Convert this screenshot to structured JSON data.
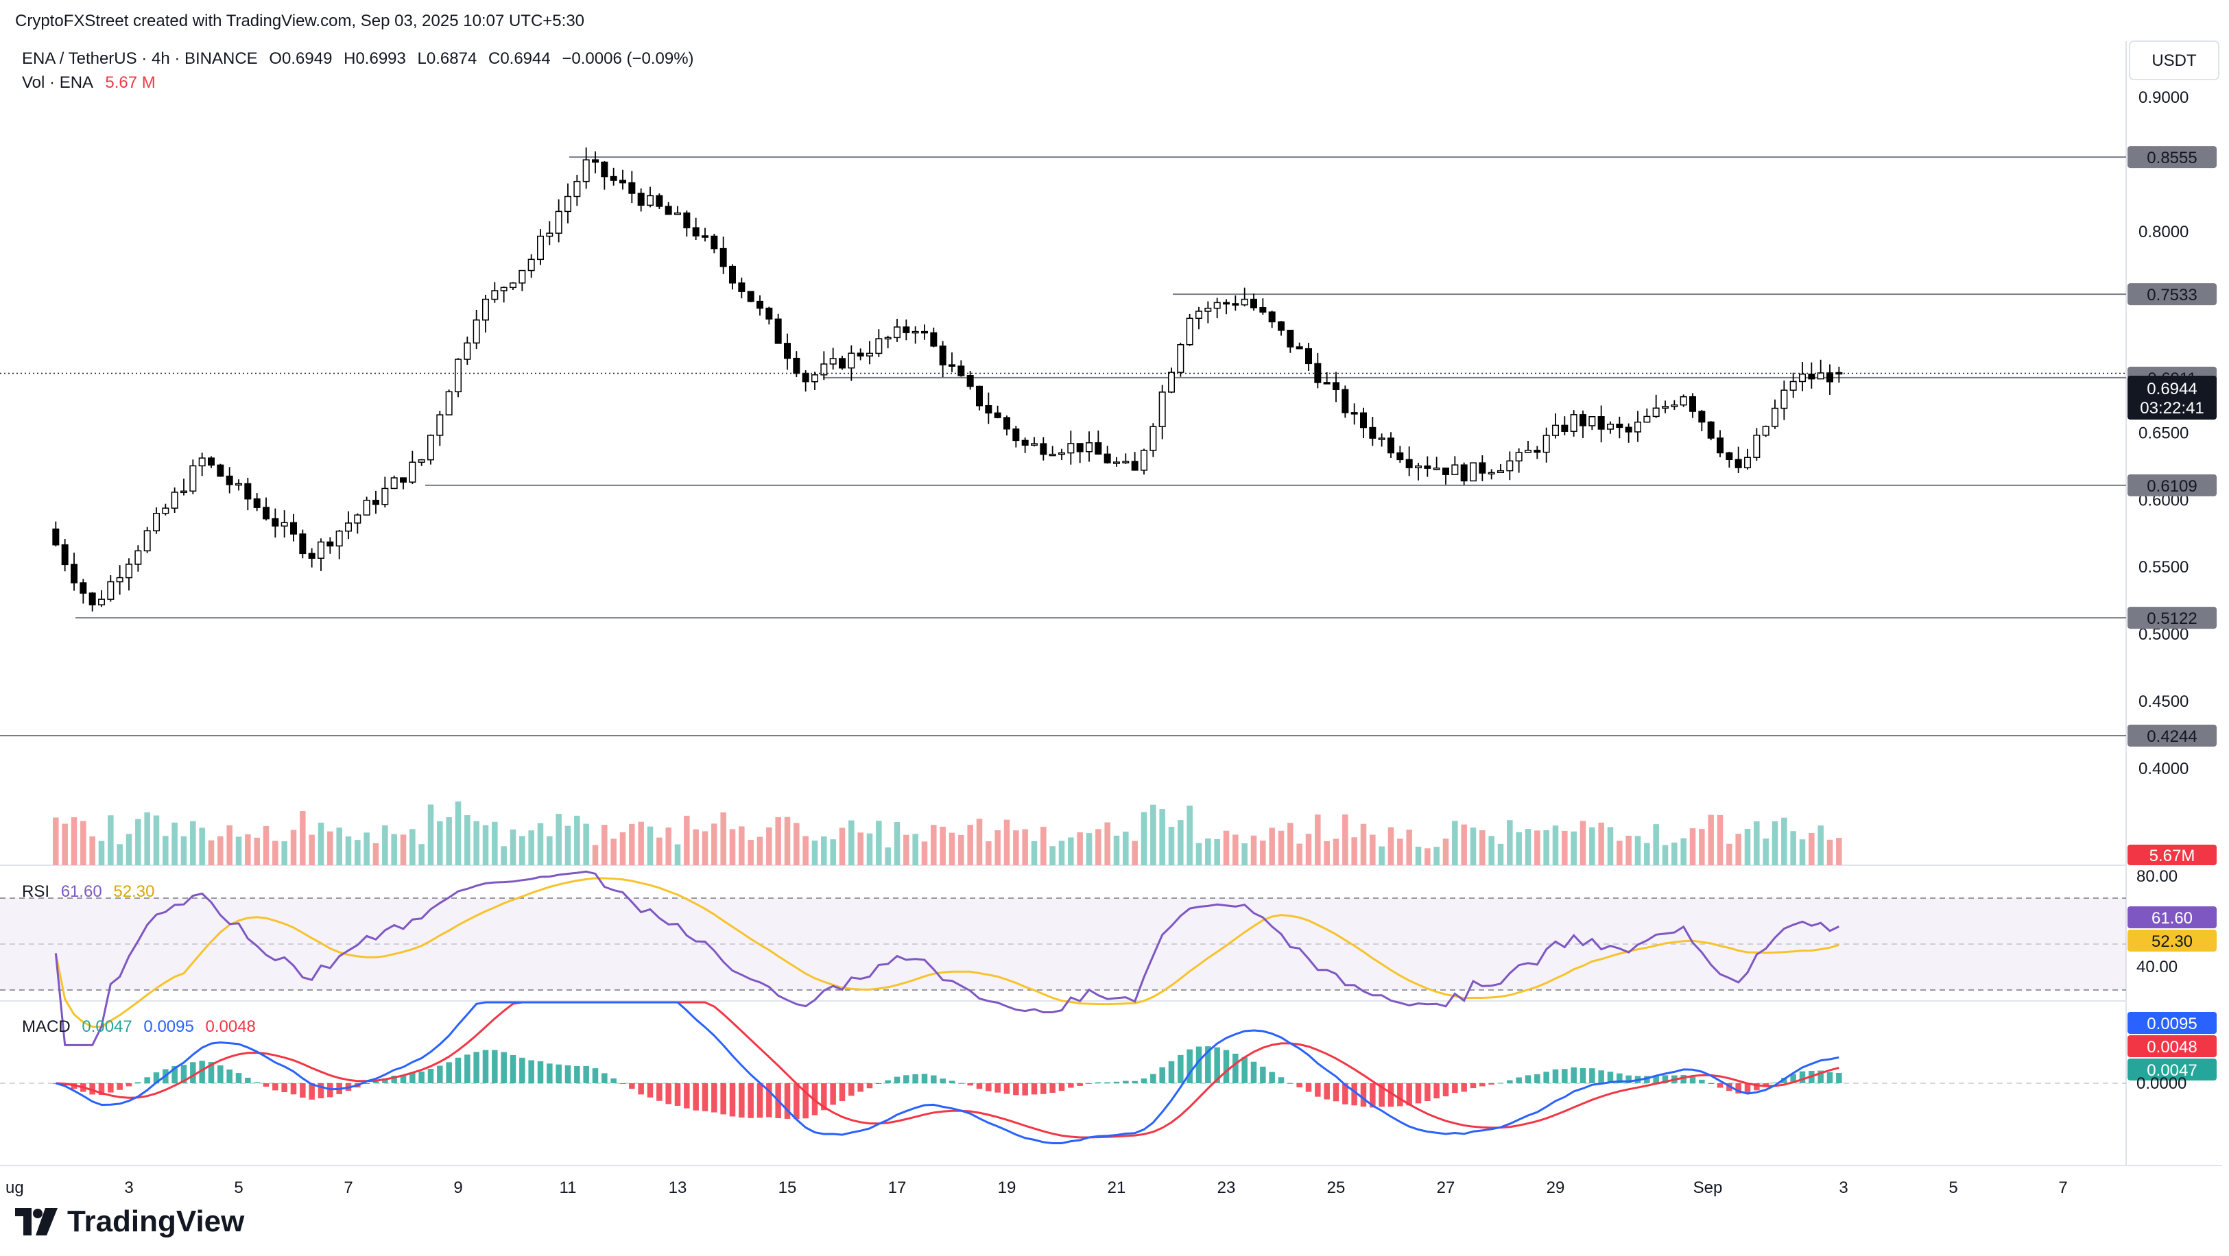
{
  "header": {
    "attribution": "CryptoFXStreet created with TradingView.com, Sep 03, 2025 10:07 UTC+5:30",
    "symbol_line_prefix": "ENA / TetherUS · 4h · BINANCE",
    "o_label": "O",
    "o_value": "0.6949",
    "h_label": "H",
    "h_value": "0.6993",
    "l_label": "L",
    "l_value": "0.6874",
    "c_label": "C",
    "c_value": "0.6944",
    "change": "−0.0006 (−0.09%)",
    "vol_label": "Vol · ENA",
    "vol_value": "5.67 M",
    "currency": "USDT"
  },
  "price_axis": {
    "ticks": [
      "0.9000",
      "0.8000",
      "0.6500",
      "0.6000",
      "0.5500",
      "0.5000",
      "0.4500",
      "0.4000"
    ],
    "tick_values": [
      0.9,
      0.8,
      0.65,
      0.6,
      0.55,
      0.5,
      0.45,
      0.4
    ],
    "current_price": "0.6944",
    "countdown": "03:22:41",
    "volume_badge": "5.67M"
  },
  "levels": [
    {
      "value": 0.8555,
      "label": "0.8555"
    },
    {
      "value": 0.7533,
      "label": "0.7533"
    },
    {
      "value": 0.6911,
      "label": "0.6911"
    },
    {
      "value": 0.6109,
      "label": "0.6109"
    },
    {
      "value": 0.5122,
      "label": "0.5122"
    },
    {
      "value": 0.4244,
      "label": "0.4244"
    }
  ],
  "rsi": {
    "label": "RSI",
    "value": "61.60",
    "ma_value": "52.30",
    "ticks": [
      "80.00",
      "40.00"
    ],
    "line_color": "#7e57c2",
    "ma_color": "#f7c32b"
  },
  "macd": {
    "label": "MACD",
    "hist": "0.0047",
    "macd": "0.0095",
    "signal": "0.0048",
    "zero_label": "0.0000",
    "macd_color": "#2962ff",
    "signal_color": "#f23645",
    "hist_color": "#26a69a"
  },
  "time_axis": {
    "labels": [
      "ug",
      "3",
      "5",
      "7",
      "9",
      "11",
      "13",
      "15",
      "17",
      "19",
      "21",
      "23",
      "25",
      "27",
      "29",
      "Sep",
      "3",
      "5",
      "7"
    ]
  },
  "brand": {
    "name": "TradingView"
  },
  "colors": {
    "up": "#ffffff",
    "down": "#000000",
    "vol_up": "#8dd1c8",
    "vol_down": "#f4a3a3",
    "line": "#787b86"
  },
  "chart_data": {
    "type": "candlestick",
    "timeframe": "4h",
    "x_start": "2025-08-01T16:00",
    "x_end": "2025-09-03T04:00",
    "ylim": [
      0.5,
      0.9
    ],
    "key_points": [
      {
        "date": "2025-08-01",
        "price": 0.59
      },
      {
        "date": "2025-08-02",
        "price": 0.52
      },
      {
        "date": "2025-08-04",
        "price": 0.63
      },
      {
        "date": "2025-08-06",
        "price": 0.56
      },
      {
        "date": "2025-08-08",
        "price": 0.63
      },
      {
        "date": "2025-08-09",
        "price": 0.74
      },
      {
        "date": "2025-08-10",
        "price": 0.78
      },
      {
        "date": "2025-08-11",
        "price": 0.85
      },
      {
        "date": "2025-08-13",
        "price": 0.8
      },
      {
        "date": "2025-08-14",
        "price": 0.75
      },
      {
        "date": "2025-08-15",
        "price": 0.69
      },
      {
        "date": "2025-08-16",
        "price": 0.71
      },
      {
        "date": "2025-08-17",
        "price": 0.73
      },
      {
        "date": "2025-08-18",
        "price": 0.68
      },
      {
        "date": "2025-08-19",
        "price": 0.64
      },
      {
        "date": "2025-08-20",
        "price": 0.64
      },
      {
        "date": "2025-08-21",
        "price": 0.62
      },
      {
        "date": "2025-08-22",
        "price": 0.74
      },
      {
        "date": "2025-08-23",
        "price": 0.75
      },
      {
        "date": "2025-08-24",
        "price": 0.71
      },
      {
        "date": "2025-08-25",
        "price": 0.66
      },
      {
        "date": "2025-08-26",
        "price": 0.63
      },
      {
        "date": "2025-08-27",
        "price": 0.62
      },
      {
        "date": "2025-08-28",
        "price": 0.63
      },
      {
        "date": "2025-08-29",
        "price": 0.66
      },
      {
        "date": "2025-08-30",
        "price": 0.65
      },
      {
        "date": "2025-08-31",
        "price": 0.68
      },
      {
        "date": "2025-09-01",
        "price": 0.62
      },
      {
        "date": "2025-09-02",
        "price": 0.69
      },
      {
        "date": "2025-09-03",
        "price": 0.6944
      }
    ]
  }
}
